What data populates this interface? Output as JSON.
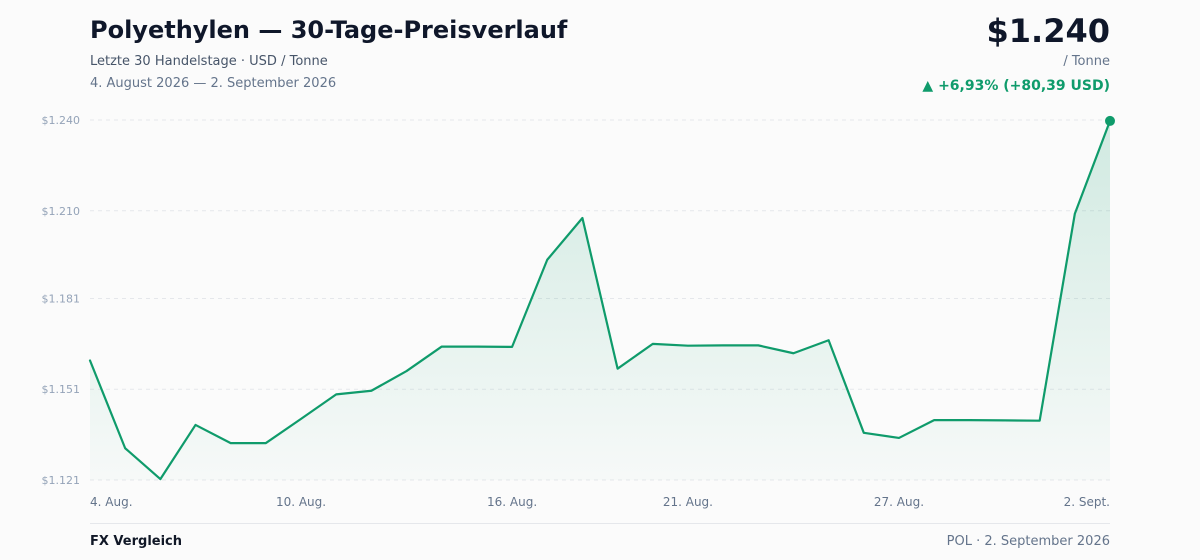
{
  "header": {
    "title": "Polyethylen — 30-Tage-Preisverlauf",
    "subtitle": "Letzte 30 Handelstage · USD / Tonne",
    "date_range": "4. August 2026 — 2. September 2026",
    "price": "$1.240",
    "unit": "/ Tonne",
    "change": "▲ +6,93% (+80,39 USD)"
  },
  "colors": {
    "line": "#0f9b6b",
    "fill": "#0f9b6b",
    "grid": "#e5e7eb",
    "tick_text": "#94a3b8",
    "axis_text": "#64748b"
  },
  "chart_data": {
    "type": "area",
    "title": "Polyethylen — 30-Tage-Preisverlauf",
    "ylim": [
      1121,
      1240
    ],
    "y_ticks": [
      {
        "value": 1240,
        "label": "$1.240"
      },
      {
        "value": 1210,
        "label": "$1.210"
      },
      {
        "value": 1181,
        "label": "$1.181"
      },
      {
        "value": 1151,
        "label": "$1.151"
      },
      {
        "value": 1121,
        "label": "$1.121"
      }
    ],
    "x_ticks": [
      {
        "index": 0,
        "label": "4. Aug."
      },
      {
        "index": 6,
        "label": "10. Aug."
      },
      {
        "index": 12,
        "label": "16. Aug."
      },
      {
        "index": 17,
        "label": "21. Aug."
      },
      {
        "index": 23,
        "label": "27. Aug."
      },
      {
        "index": 29,
        "label": "2. Sept."
      }
    ],
    "grid": true,
    "series": [
      {
        "values": [
          1160.5,
          1131.5,
          1121.3,
          1139.2,
          1133.2,
          1133.2,
          1141.2,
          1149.3,
          1150.5,
          1157.0,
          1165.1,
          1165.1,
          1165.0,
          1193.8,
          1207.6,
          1157.8,
          1166.0,
          1165.4,
          1165.5,
          1165.5,
          1162.9,
          1167.2,
          1136.6,
          1134.9,
          1140.8,
          1140.8,
          1140.7,
          1140.6,
          1209.0,
          1239.7
        ]
      }
    ]
  },
  "footer": {
    "left": "FX Vergleich",
    "right": "POL · 2. September 2026"
  }
}
